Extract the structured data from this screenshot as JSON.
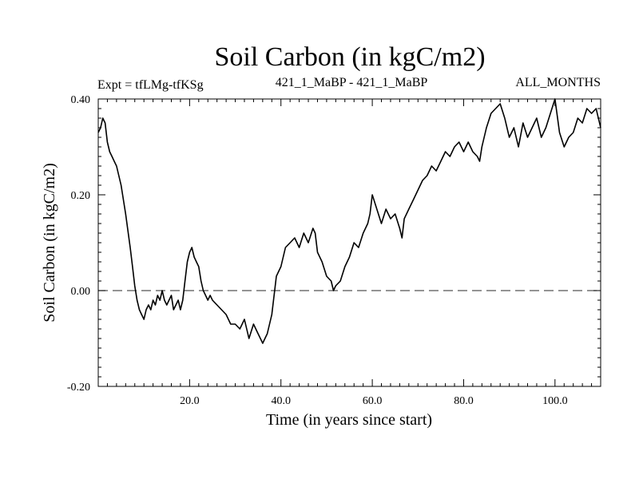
{
  "chart_data": {
    "type": "line",
    "title": "Soil Carbon (in kgC/m2)",
    "subtitle_left": "Expt = tfLMg-tfKSg",
    "subtitle_center": "421_1_MaBP - 421_1_MaBP",
    "subtitle_right": "ALL_MONTHS",
    "xlabel": "Time (in years since start)",
    "ylabel": "Soil Carbon (in kgC/m2)",
    "xlim": [
      0,
      110
    ],
    "ylim": [
      -0.2,
      0.4
    ],
    "xticks": [
      20,
      40,
      60,
      80,
      100
    ],
    "xtick_labels": [
      "20.0",
      "40.0",
      "60.0",
      "80.0",
      "100.0"
    ],
    "yticks": [
      -0.2,
      0.0,
      0.2,
      0.4
    ],
    "ytick_labels": [
      "-0.20",
      "0.00",
      "0.20",
      "0.40"
    ],
    "reference_line": 0.0,
    "series": [
      {
        "name": "Soil Carbon",
        "x": [
          0,
          0.5,
          1,
          1.5,
          2,
          2.5,
          3,
          3.5,
          4,
          5,
          6,
          7,
          7.5,
          8,
          8.5,
          9,
          9.5,
          10,
          10.5,
          11,
          11.5,
          12,
          12.5,
          13,
          13.5,
          14,
          14.5,
          15,
          15.5,
          16,
          16.5,
          17,
          17.5,
          18,
          18.5,
          19,
          19.5,
          20,
          20.5,
          21,
          21.5,
          22,
          22.5,
          23,
          23.5,
          24,
          24.5,
          25,
          26,
          27,
          28,
          29,
          30,
          31,
          32,
          33,
          34,
          35,
          36,
          36.5,
          37,
          38,
          39,
          40,
          41,
          42,
          43,
          44,
          45,
          46,
          47,
          47.5,
          48,
          49,
          50,
          51,
          51.5,
          52,
          53,
          54,
          55,
          56,
          57,
          58,
          59,
          59.5,
          60,
          61,
          62,
          63,
          64,
          65,
          66,
          66.5,
          67,
          68,
          69,
          70,
          71,
          72,
          73,
          74,
          75,
          76,
          77,
          78,
          79,
          80,
          81,
          82,
          83,
          83.5,
          84,
          85,
          86,
          87,
          88,
          89,
          90,
          91,
          92,
          93,
          94,
          95,
          96,
          97,
          98,
          99,
          100,
          101,
          102,
          103,
          104,
          105,
          106,
          107,
          108,
          109,
          110
        ],
        "y": [
          0.33,
          0.34,
          0.36,
          0.35,
          0.31,
          0.29,
          0.28,
          0.27,
          0.26,
          0.22,
          0.16,
          0.09,
          0.05,
          0.01,
          -0.02,
          -0.04,
          -0.05,
          -0.06,
          -0.04,
          -0.03,
          -0.04,
          -0.02,
          -0.03,
          -0.01,
          -0.02,
          0.0,
          -0.02,
          -0.03,
          -0.02,
          -0.01,
          -0.04,
          -0.03,
          -0.02,
          -0.04,
          -0.02,
          0.02,
          0.06,
          0.08,
          0.09,
          0.07,
          0.06,
          0.05,
          0.02,
          0.0,
          -0.01,
          -0.02,
          -0.01,
          -0.02,
          -0.03,
          -0.04,
          -0.05,
          -0.07,
          -0.07,
          -0.08,
          -0.06,
          -0.1,
          -0.07,
          -0.09,
          -0.11,
          -0.1,
          -0.09,
          -0.05,
          0.03,
          0.05,
          0.09,
          0.1,
          0.11,
          0.09,
          0.12,
          0.1,
          0.13,
          0.12,
          0.08,
          0.06,
          0.03,
          0.02,
          0.0,
          0.01,
          0.02,
          0.05,
          0.07,
          0.1,
          0.09,
          0.12,
          0.14,
          0.16,
          0.2,
          0.17,
          0.14,
          0.17,
          0.15,
          0.16,
          0.13,
          0.11,
          0.15,
          0.17,
          0.19,
          0.21,
          0.23,
          0.24,
          0.26,
          0.25,
          0.27,
          0.29,
          0.28,
          0.3,
          0.31,
          0.29,
          0.31,
          0.29,
          0.28,
          0.27,
          0.3,
          0.34,
          0.37,
          0.38,
          0.39,
          0.36,
          0.32,
          0.34,
          0.3,
          0.35,
          0.32,
          0.34,
          0.36,
          0.32,
          0.34,
          0.37,
          0.4,
          0.33,
          0.3,
          0.32,
          0.33,
          0.36,
          0.35,
          0.38,
          0.37,
          0.38,
          0.34
        ]
      }
    ]
  }
}
